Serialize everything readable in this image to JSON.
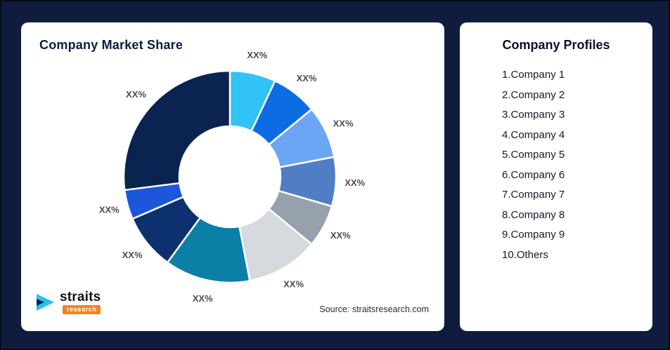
{
  "page": {
    "background": "#101C3E"
  },
  "left_card": {
    "title": "Company Market Share",
    "source": "Source: straitsresearch.com"
  },
  "logo": {
    "brand": "straits",
    "sub": "research",
    "mark_color": "#29BFEF",
    "mark_accent_color": "#0A2351",
    "sub_bg_color": "#F58220"
  },
  "right_card": {
    "title": "Company Profiles",
    "items": [
      "1.Company 1",
      "2.Company 2",
      "3.Company 3",
      "4.Company 4",
      "5.Company 5",
      "6.Company 6",
      "7.Company 7",
      "8.Company 8",
      "9.Company 9",
      "10.Others"
    ]
  },
  "chart_data": {
    "type": "pie",
    "variant": "donut",
    "title": "Company Market Share",
    "order": "clockwise from 12 o'clock",
    "inner_radius_ratio": 0.48,
    "legend_position": "none",
    "note": "all slice data labels show placeholder text XX%; values are visual estimates of slice sizes in percent",
    "slices": [
      {
        "label": "XX%",
        "value": 7,
        "color": "#31C3F3"
      },
      {
        "label": "XX%",
        "value": 7,
        "color": "#0B6CE4"
      },
      {
        "label": "XX%",
        "value": 8,
        "color": "#6BA6F5"
      },
      {
        "label": "XX%",
        "value": 7.5,
        "color": "#4F7EC4"
      },
      {
        "label": "XX%",
        "value": 6.5,
        "color": "#97A1AE"
      },
      {
        "label": "XX%",
        "value": 11,
        "color": "#D6DADF"
      },
      {
        "label": "XX%",
        "value": 13,
        "color": "#0B7FA6"
      },
      {
        "label": "XX%",
        "value": 8.5,
        "color": "#0D306E"
      },
      {
        "label": "XX%",
        "value": 4.5,
        "color": "#1C57D9"
      },
      {
        "label": "XX%",
        "value": 27,
        "color": "#0A2351"
      }
    ],
    "source": "Source: straitsresearch.com"
  }
}
